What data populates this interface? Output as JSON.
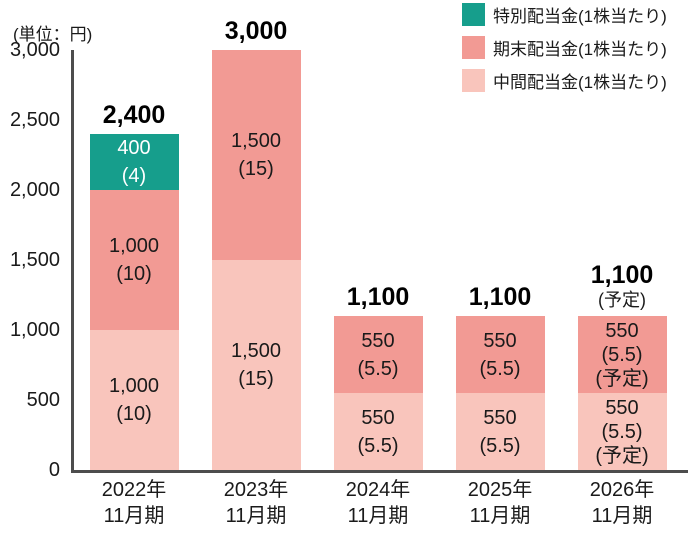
{
  "chart_data": {
    "type": "bar",
    "stacked": true,
    "unit_label": "(単位：円)",
    "ylim": [
      0,
      3000
    ],
    "grid": false,
    "legend_position": "top-right",
    "yticks": [
      {
        "value": 0,
        "label": "0"
      },
      {
        "value": 500,
        "label": "500"
      },
      {
        "value": 1000,
        "label": "1,000"
      },
      {
        "value": 1500,
        "label": "1,500"
      },
      {
        "value": 2000,
        "label": "2,000"
      },
      {
        "value": 2500,
        "label": "2,500"
      },
      {
        "value": 3000,
        "label": "3,000"
      }
    ],
    "series": [
      {
        "key": "interim",
        "label": "中間配当金(1株当たり)",
        "color": "#F9C5BC",
        "label_text_color": "#1A1A1A",
        "values": [
          1000,
          1500,
          550,
          550,
          550
        ]
      },
      {
        "key": "year_end",
        "label": "期末配当金(1株当たり)",
        "color": "#F29A94",
        "label_text_color": "#1A1A1A",
        "values": [
          1000,
          1500,
          550,
          550,
          550
        ]
      },
      {
        "key": "special",
        "label": "特別配当金(1株当たり)",
        "color": "#169E8C",
        "label_text_color": "#FFFFFF",
        "values": [
          400,
          0,
          0,
          0,
          0
        ]
      }
    ],
    "legend_order": [
      "special",
      "year_end",
      "interim"
    ],
    "bars": [
      {
        "category_lines": [
          "2022年",
          "11月期"
        ],
        "total_value": 2400,
        "total_label_lines": [
          "2,400"
        ],
        "segments": [
          {
            "series": "interim",
            "value": 1000,
            "label_lines": [
              "1,000",
              "(10)"
            ]
          },
          {
            "series": "year_end",
            "value": 1000,
            "label_lines": [
              "1,000",
              "(10)"
            ]
          },
          {
            "series": "special",
            "value": 400,
            "label_lines": [
              "400",
              "(4)"
            ]
          }
        ]
      },
      {
        "category_lines": [
          "2023年",
          "11月期"
        ],
        "total_value": 3000,
        "total_label_lines": [
          "3,000"
        ],
        "segments": [
          {
            "series": "interim",
            "value": 1500,
            "label_lines": [
              "1,500",
              "(15)"
            ]
          },
          {
            "series": "year_end",
            "value": 1500,
            "label_lines": [
              "1,500",
              "(15)"
            ]
          }
        ]
      },
      {
        "category_lines": [
          "2024年",
          "11月期"
        ],
        "total_value": 1100,
        "total_label_lines": [
          "1,100"
        ],
        "segments": [
          {
            "series": "interim",
            "value": 550,
            "label_lines": [
              "550",
              "(5.5)"
            ]
          },
          {
            "series": "year_end",
            "value": 550,
            "label_lines": [
              "550",
              "(5.5)"
            ]
          }
        ]
      },
      {
        "category_lines": [
          "2025年",
          "11月期"
        ],
        "total_value": 1100,
        "total_label_lines": [
          "1,100"
        ],
        "segments": [
          {
            "series": "interim",
            "value": 550,
            "label_lines": [
              "550",
              "(5.5)"
            ]
          },
          {
            "series": "year_end",
            "value": 550,
            "label_lines": [
              "550",
              "(5.5)"
            ]
          }
        ]
      },
      {
        "category_lines": [
          "2026年",
          "11月期"
        ],
        "total_value": 1100,
        "total_label_lines": [
          "1,100",
          "(予定)"
        ],
        "segments": [
          {
            "series": "interim",
            "value": 550,
            "label_lines": [
              "550",
              "(5.5)",
              "(予定)"
            ]
          },
          {
            "series": "year_end",
            "value": 550,
            "label_lines": [
              "550",
              "(5.5)",
              "(予定)"
            ]
          }
        ]
      }
    ],
    "colors": {
      "axis": "#4D4D4D",
      "text": "#1A1A1A",
      "background": "#FFFFFF"
    }
  }
}
